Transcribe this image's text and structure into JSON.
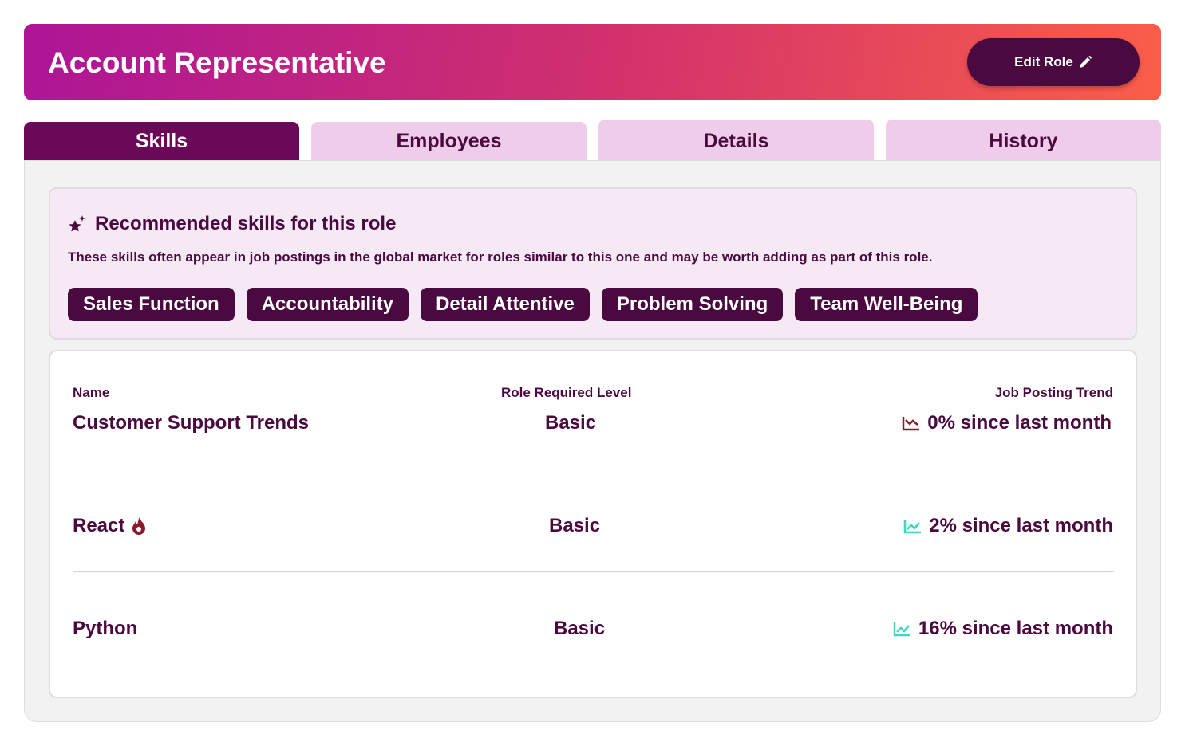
{
  "header": {
    "title": "Account Representative",
    "button": "Edit Role"
  },
  "tabs": [
    "Skills",
    "Employees",
    "Details",
    "History"
  ],
  "recommended": {
    "title": "Recommended skills for this role",
    "description": "These skills often appear in job postings in the global market for roles similar to this one and may be worth adding as part of this role.",
    "chips": [
      "Sales Function",
      "Accountability",
      "Detail Attentive",
      "Problem Solving",
      "Team Well-Being"
    ]
  },
  "table": {
    "headers": [
      "Name",
      "Role Required Level",
      "Job Posting Trend"
    ],
    "rows": [
      [
        "Customer Support Trends",
        "Basic",
        "0% since last month"
      ],
      [
        "React",
        "Basic",
        "2% since last month"
      ],
      [
        "Python",
        "Basic",
        "16% since last month"
      ]
    ]
  }
}
